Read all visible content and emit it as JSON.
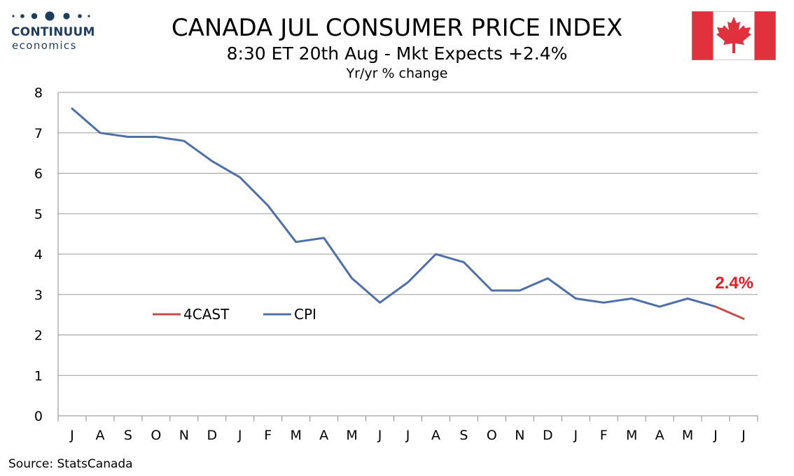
{
  "logo": {
    "name": "CONTINUUM",
    "sub": "economics",
    "color": "#1f3d5c"
  },
  "header": {
    "title": "CANADA JUL CONSUMER PRICE INDEX",
    "subtitle": "8:30 ET 20th Aug - Mkt Expects +2.4%",
    "units": "Yr/yr % change"
  },
  "flag": {
    "icon": "canada-flag-icon",
    "red": "#e0313d",
    "white": "#ffffff"
  },
  "source": "Source: StatsCanada",
  "chart_data": {
    "type": "line",
    "title": "",
    "xlabel": "",
    "ylabel": "",
    "categories": [
      "J",
      "A",
      "S",
      "O",
      "N",
      "D",
      "J",
      "F",
      "M",
      "A",
      "M",
      "J",
      "J",
      "A",
      "S",
      "O",
      "N",
      "D",
      "J",
      "F",
      "M",
      "A",
      "M",
      "J",
      "J"
    ],
    "yticks": [
      0,
      1,
      2,
      3,
      4,
      5,
      6,
      7,
      8
    ],
    "ylim": [
      0,
      8
    ],
    "grid": true,
    "legend_position": "center-left",
    "series": [
      {
        "name": "CPI",
        "color": "#4f6fa8",
        "values": [
          7.6,
          7.0,
          6.9,
          6.9,
          6.8,
          6.3,
          5.9,
          5.2,
          4.3,
          4.4,
          3.4,
          2.8,
          3.3,
          4.0,
          3.8,
          3.1,
          3.1,
          3.4,
          2.9,
          2.8,
          2.9,
          2.7,
          2.9,
          2.7,
          null
        ]
      },
      {
        "name": "4CAST",
        "color": "#c0504d",
        "values": [
          null,
          null,
          null,
          null,
          null,
          null,
          null,
          null,
          null,
          null,
          null,
          null,
          null,
          null,
          null,
          null,
          null,
          null,
          null,
          null,
          null,
          null,
          null,
          2.7,
          2.4
        ]
      }
    ],
    "annotation": {
      "text": "2.4%",
      "color": "#e31b23",
      "index": 24,
      "value": 2.4
    }
  }
}
